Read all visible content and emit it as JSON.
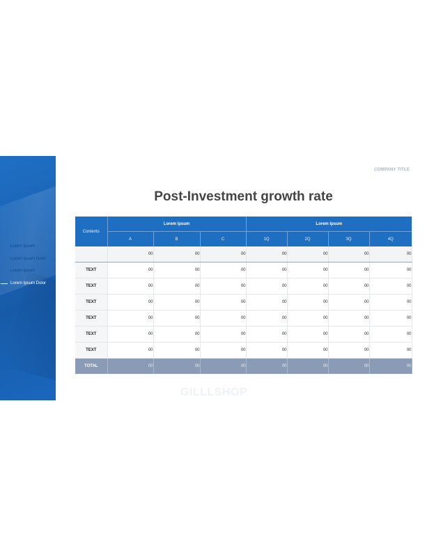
{
  "company_title": "COMPANY TITLE",
  "title": "Post-Investment growth rate",
  "watermark": "GILLLSHOP",
  "colors": {
    "header_blue": "#1e6fc2",
    "total_row": "#8a9bb6",
    "sidebar": "#1a63b5"
  },
  "nav": {
    "items": [
      {
        "label": "Lorem Ipsum",
        "active": false
      },
      {
        "label": "Lorem Ipsum Dolor",
        "active": false
      },
      {
        "label": "Lorem Ipsum",
        "active": false
      },
      {
        "label": "Lorem Ipsum Dolor",
        "active": true
      }
    ]
  },
  "table": {
    "contents_header": "Contents",
    "group1": "Lorem Ipsum",
    "group2": "Lorem Ipsum",
    "sub_headers": [
      "A",
      "B",
      "C",
      "1Q",
      "2Q",
      "3Q",
      "4Q"
    ],
    "first_row": {
      "label": "",
      "values": [
        "00",
        "00",
        "00",
        "00",
        "00",
        "00",
        "00"
      ]
    },
    "rows": [
      {
        "label": "TEXT",
        "values": [
          "00",
          "00",
          "00",
          "00",
          "00",
          "00",
          "00"
        ]
      },
      {
        "label": "TEXT",
        "values": [
          "00",
          "00",
          "00",
          "00",
          "00",
          "00",
          "00"
        ]
      },
      {
        "label": "TEXT",
        "values": [
          "00",
          "00",
          "00",
          "00",
          "00",
          "00",
          "00"
        ]
      },
      {
        "label": "TEXT",
        "values": [
          "00",
          "00",
          "00",
          "00",
          "00",
          "00",
          "00"
        ]
      },
      {
        "label": "TEXT",
        "values": [
          "00",
          "00",
          "00",
          "00",
          "00",
          "00",
          "00"
        ]
      },
      {
        "label": "TEXT",
        "values": [
          "00",
          "00",
          "00",
          "00",
          "00",
          "00",
          "00"
        ]
      }
    ],
    "total": {
      "label": "TOTAL",
      "values": [
        "00",
        "00",
        "00",
        "00",
        "00",
        "00",
        "00"
      ]
    }
  }
}
